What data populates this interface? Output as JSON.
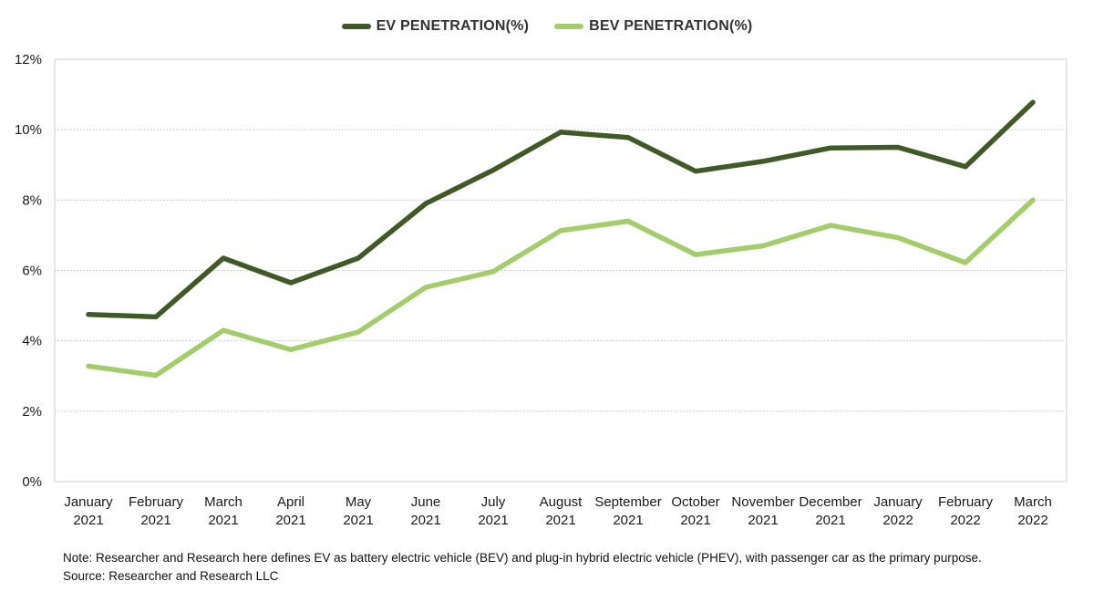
{
  "chart_data": {
    "type": "line",
    "categories": [
      [
        "January",
        "2021"
      ],
      [
        "February",
        "2021"
      ],
      [
        "March",
        "2021"
      ],
      [
        "April",
        "2021"
      ],
      [
        "May",
        "2021"
      ],
      [
        "June",
        "2021"
      ],
      [
        "July",
        "2021"
      ],
      [
        "August",
        "2021"
      ],
      [
        "September",
        "2021"
      ],
      [
        "October",
        "2021"
      ],
      [
        "November",
        "2021"
      ],
      [
        "December",
        "2021"
      ],
      [
        "January",
        "2022"
      ],
      [
        "February",
        "2022"
      ],
      [
        "March",
        "2022"
      ]
    ],
    "series": [
      {
        "name": "EV PENETRATION(%)",
        "color": "#3f5a26",
        "values": [
          4.75,
          4.68,
          6.35,
          5.65,
          6.35,
          7.9,
          8.85,
          9.93,
          9.78,
          8.82,
          9.1,
          9.48,
          9.5,
          8.95,
          10.78
        ]
      },
      {
        "name": "BEV PENETRATION(%)",
        "color": "#a3cc6a",
        "values": [
          3.28,
          3.02,
          4.3,
          3.75,
          4.25,
          5.52,
          5.97,
          7.13,
          7.4,
          6.45,
          6.7,
          7.28,
          6.93,
          6.22,
          8.0
        ]
      }
    ],
    "yticks": [
      "0%",
      "2%",
      "4%",
      "6%",
      "8%",
      "10%",
      "12%"
    ],
    "ylim": [
      0,
      12
    ],
    "ystep": 2,
    "grid": true,
    "legend_position": "top-center"
  },
  "footnotes": {
    "note": "Note:  Researcher and Research here defines EV as battery electric vehicle (BEV) and plug-in hybrid electric vehicle (PHEV), with passenger car as the primary purpose.",
    "source": "Source: Researcher and Research LLC"
  }
}
